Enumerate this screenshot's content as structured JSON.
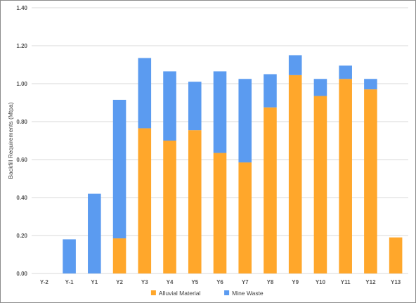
{
  "chart_data": {
    "type": "bar",
    "stacked": true,
    "title": "",
    "xlabel": "",
    "ylabel": "Backfill Requirements (Mtpa)",
    "ylim": [
      0,
      1.4
    ],
    "yticks": [
      "0.00",
      "0.20",
      "0.40",
      "0.60",
      "0.80",
      "1.00",
      "1.20",
      "1.40"
    ],
    "grid": true,
    "legend_position": "bottom",
    "categories": [
      "Y-2",
      "Y-1",
      "Y1",
      "Y2",
      "Y3",
      "Y4",
      "Y5",
      "Y6",
      "Y7",
      "Y8",
      "Y9",
      "Y10",
      "Y11",
      "Y12",
      "Y13"
    ],
    "series": [
      {
        "name": "Alluvial Material",
        "color": "#ffa72b",
        "values": [
          0,
          0,
          0,
          0.185,
          0.765,
          0.7,
          0.755,
          0.635,
          0.585,
          0.875,
          1.045,
          0.935,
          1.025,
          0.97,
          0.19
        ]
      },
      {
        "name": "Mine Waste",
        "color": "#5b9bf0",
        "values": [
          0,
          0.18,
          0.42,
          0.73,
          0.37,
          0.365,
          0.255,
          0.43,
          0.44,
          0.175,
          0.105,
          0.09,
          0.07,
          0.055,
          0
        ]
      }
    ]
  }
}
